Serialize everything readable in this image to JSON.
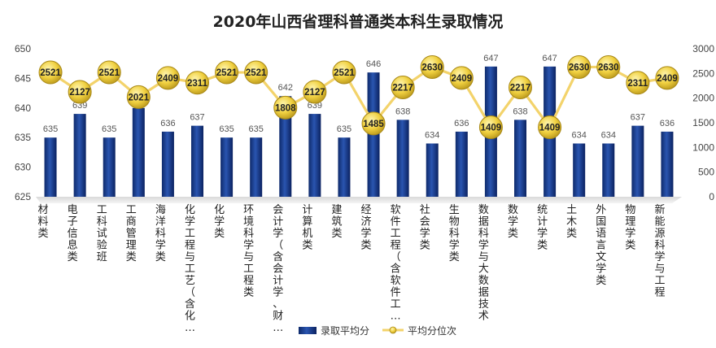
{
  "chart_data": {
    "type": "bar+line",
    "title": "2020年山西省理科普通类本科生录取情况",
    "categories": [
      "材料类",
      "电子信息类",
      "工科试验班",
      "工商管理类",
      "海洋科学类",
      "化学工程与工艺（含化…",
      "化学类",
      "环境科学与工程类",
      "会计学（含会计学、财…",
      "计算机类",
      "建筑类",
      "经济学类",
      "软件工程（含软件工…",
      "社会学类",
      "生物科学类",
      "数据科学与大数据技术",
      "数学类",
      "统计学类",
      "土木类",
      "外国语言文学类",
      "物理学类",
      "新能源科学与工程"
    ],
    "series": [
      {
        "name": "录取平均分",
        "type": "bar",
        "axis": "left",
        "color": "#1f3f8c",
        "values": [
          635,
          639,
          635,
          640,
          636,
          637,
          635,
          635,
          642,
          639,
          635,
          646,
          638,
          634,
          636,
          647,
          638,
          647,
          634,
          634,
          637,
          636
        ]
      },
      {
        "name": "平均分位次",
        "type": "line",
        "axis": "right",
        "color": "#f3d36b",
        "values": [
          2521,
          2127,
          2521,
          2021,
          2409,
          2311,
          2521,
          2521,
          1808,
          2127,
          2521,
          1485,
          2217,
          2630,
          2409,
          1409,
          2217,
          1409,
          2630,
          2630,
          2311,
          2409
        ]
      }
    ],
    "y_left": {
      "min": 625,
      "max": 650,
      "ticks": [
        625,
        630,
        635,
        640,
        645,
        650
      ]
    },
    "y_right": {
      "min": 0,
      "max": 3000,
      "ticks": [
        0,
        500,
        1000,
        1500,
        2000,
        2500,
        3000
      ]
    },
    "legend": {
      "position": "bottom",
      "items": [
        "录取平均分",
        "平均分位次"
      ]
    },
    "grid": false
  }
}
